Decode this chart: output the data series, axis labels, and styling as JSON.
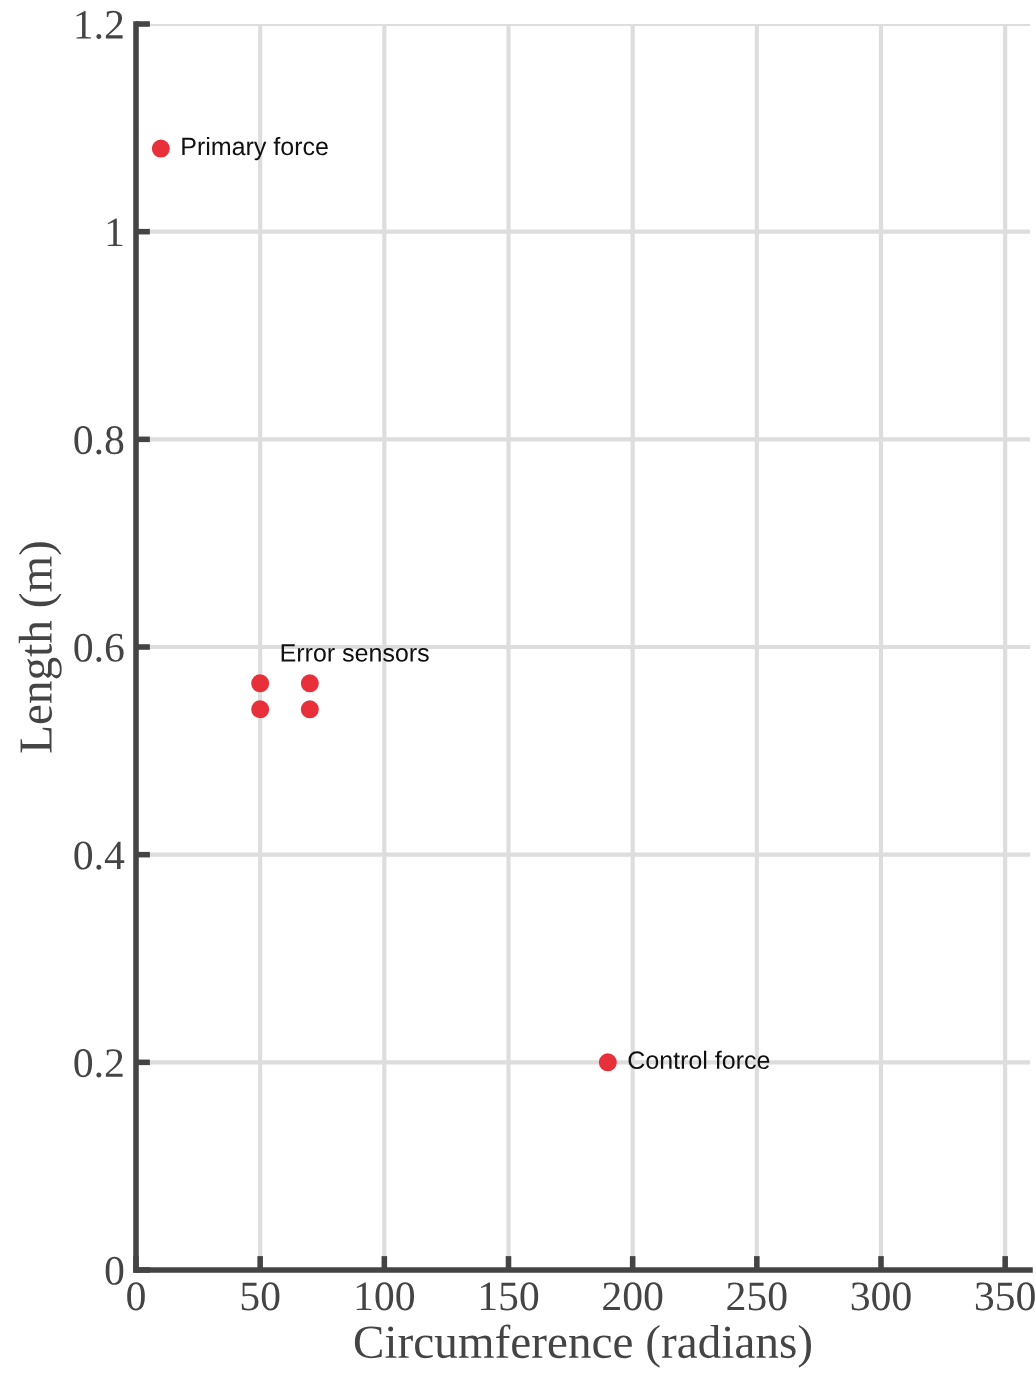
{
  "chart_data": {
    "type": "scatter",
    "xlabel": "Circumference (radians)",
    "ylabel": "Length (m)",
    "x": [
      10,
      50,
      70,
      50,
      70,
      190
    ],
    "values": [
      1.08,
      0.565,
      0.565,
      0.54,
      0.54,
      0.2
    ],
    "color": "#e8303a",
    "marker": "circle",
    "grid": true,
    "legend": false,
    "xlim": [
      0,
      360
    ],
    "xticks": [
      0,
      50,
      100,
      150,
      200,
      250,
      300,
      350
    ],
    "ylim": [
      0,
      1.2
    ],
    "yticks": [
      0,
      0.2,
      0.4,
      0.6,
      0.8,
      1,
      1.2
    ],
    "annotations": [
      {
        "text": "Primary force",
        "x": 10,
        "y": 1.08
      },
      {
        "text": "Error sensors",
        "x": 50,
        "y": 0.565
      },
      {
        "text": "Control force",
        "x": 190,
        "y": 0.2
      }
    ]
  }
}
